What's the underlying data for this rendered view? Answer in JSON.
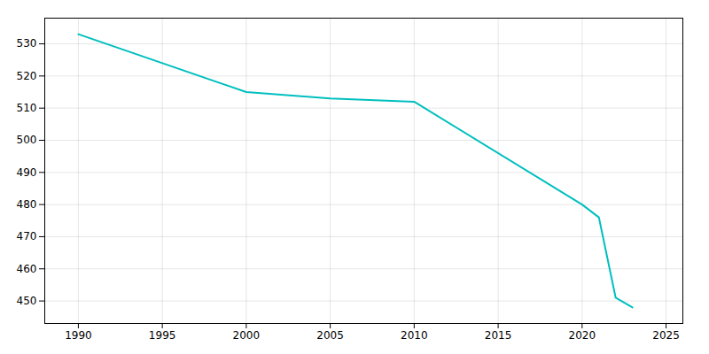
{
  "chart_data": {
    "type": "line",
    "x": [
      1990,
      2000,
      2005,
      2010,
      2020,
      2021,
      2022,
      2023
    ],
    "values": [
      533,
      515,
      513,
      512,
      480,
      476,
      451,
      448
    ],
    "color": "#00BFBF",
    "xlim": [
      1988,
      2026
    ],
    "ylim": [
      443,
      538
    ],
    "xticks": [
      1990,
      1995,
      2000,
      2005,
      2010,
      2015,
      2020,
      2025
    ],
    "yticks": [
      450,
      460,
      470,
      480,
      490,
      500,
      510,
      520,
      530
    ],
    "grid": true
  }
}
